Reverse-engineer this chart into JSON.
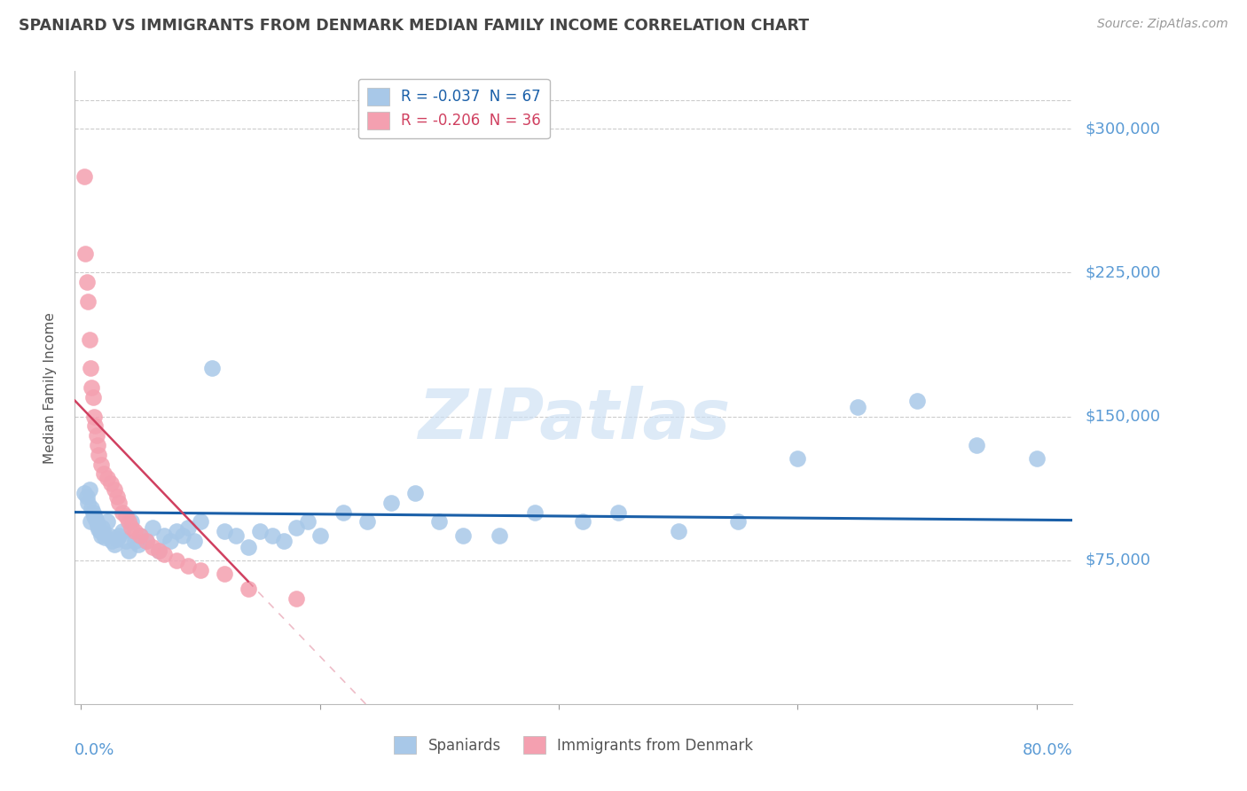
{
  "title": "SPANIARD VS IMMIGRANTS FROM DENMARK MEDIAN FAMILY INCOME CORRELATION CHART",
  "source": "Source: ZipAtlas.com",
  "ylabel": "Median Family Income",
  "ytick_labels": [
    "$75,000",
    "$150,000",
    "$225,000",
    "$300,000"
  ],
  "ytick_values": [
    75000,
    150000,
    225000,
    300000
  ],
  "ylim": [
    0,
    330000
  ],
  "xlim": [
    -0.005,
    0.83
  ],
  "legend_entries": [
    {
      "label": "R = -0.037  N = 67",
      "color": "#a8c8e8"
    },
    {
      "label": "R = -0.206  N = 36",
      "color": "#f4a0b0"
    }
  ],
  "legend_bottom": [
    "Spaniards",
    "Immigrants from Denmark"
  ],
  "watermark": "ZIPatlas",
  "spaniards_x": [
    0.003,
    0.005,
    0.006,
    0.007,
    0.008,
    0.009,
    0.01,
    0.011,
    0.012,
    0.013,
    0.014,
    0.015,
    0.016,
    0.017,
    0.018,
    0.019,
    0.02,
    0.022,
    0.024,
    0.026,
    0.028,
    0.03,
    0.032,
    0.035,
    0.038,
    0.04,
    0.042,
    0.045,
    0.048,
    0.05,
    0.055,
    0.06,
    0.065,
    0.07,
    0.075,
    0.08,
    0.085,
    0.09,
    0.095,
    0.1,
    0.11,
    0.12,
    0.13,
    0.14,
    0.15,
    0.16,
    0.17,
    0.18,
    0.19,
    0.2,
    0.22,
    0.24,
    0.26,
    0.28,
    0.3,
    0.32,
    0.35,
    0.38,
    0.42,
    0.45,
    0.5,
    0.55,
    0.6,
    0.65,
    0.7,
    0.75,
    0.8
  ],
  "spaniards_y": [
    110000,
    108000,
    105000,
    112000,
    95000,
    102000,
    100000,
    98000,
    97000,
    95000,
    93000,
    91000,
    90000,
    88000,
    92000,
    89000,
    87000,
    95000,
    88000,
    85000,
    83000,
    86000,
    88000,
    90000,
    85000,
    80000,
    95000,
    85000,
    83000,
    88000,
    85000,
    92000,
    80000,
    88000,
    85000,
    90000,
    88000,
    92000,
    85000,
    95000,
    175000,
    90000,
    88000,
    82000,
    90000,
    88000,
    85000,
    92000,
    95000,
    88000,
    100000,
    95000,
    105000,
    110000,
    95000,
    88000,
    88000,
    100000,
    95000,
    100000,
    90000,
    95000,
    128000,
    155000,
    158000,
    135000,
    128000
  ],
  "denmark_x": [
    0.003,
    0.004,
    0.005,
    0.006,
    0.007,
    0.008,
    0.009,
    0.01,
    0.011,
    0.012,
    0.013,
    0.014,
    0.015,
    0.017,
    0.019,
    0.022,
    0.025,
    0.028,
    0.03,
    0.032,
    0.035,
    0.038,
    0.04,
    0.042,
    0.045,
    0.05,
    0.055,
    0.06,
    0.065,
    0.07,
    0.08,
    0.09,
    0.1,
    0.12,
    0.14,
    0.18
  ],
  "denmark_y": [
    275000,
    235000,
    220000,
    210000,
    190000,
    175000,
    165000,
    160000,
    150000,
    145000,
    140000,
    135000,
    130000,
    125000,
    120000,
    118000,
    115000,
    112000,
    108000,
    105000,
    100000,
    98000,
    95000,
    92000,
    90000,
    88000,
    85000,
    82000,
    80000,
    78000,
    75000,
    72000,
    70000,
    68000,
    60000,
    55000
  ],
  "blue_line_color": "#1a5fa8",
  "pink_line_color": "#d04060",
  "scatter_blue": "#a8c8e8",
  "scatter_pink": "#f4a0b0",
  "bg_color": "#ffffff",
  "grid_color": "#cccccc",
  "title_color": "#444444",
  "axis_color": "#5b9bd5",
  "watermark_color": "#cce0f4",
  "blue_line_intercept": 100000,
  "blue_line_slope": -5000,
  "pink_line_intercept": 155000,
  "pink_line_slope": -650000
}
